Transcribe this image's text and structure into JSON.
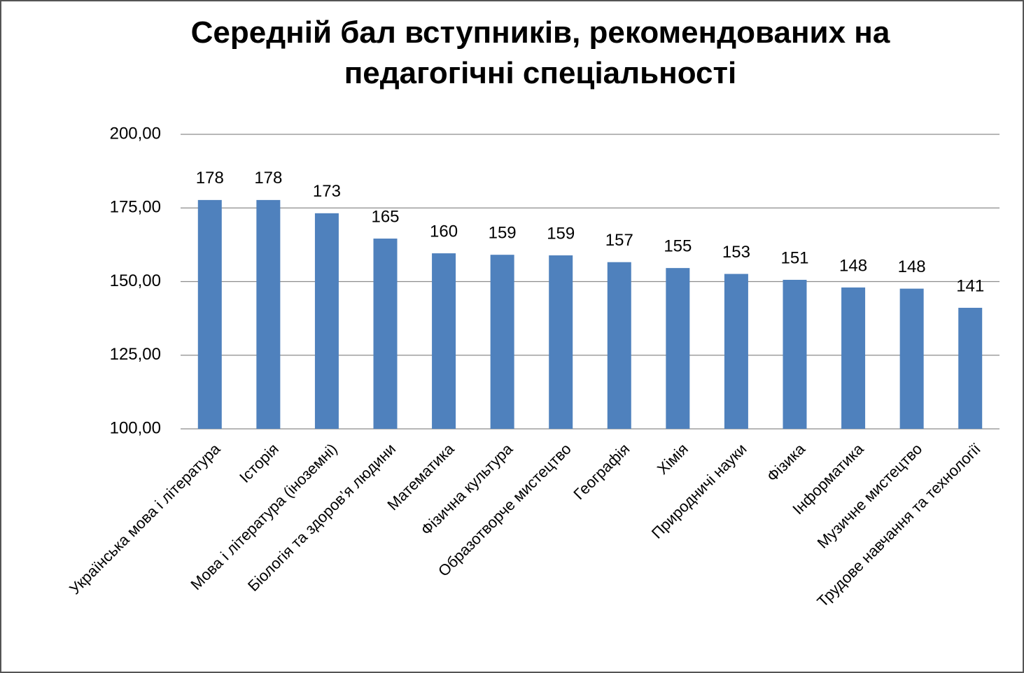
{
  "chart_data": {
    "type": "bar",
    "title": "Середній бал вступників, рекомендованих на педагогічні спеціальності",
    "categories": [
      "Українська мова і література",
      "Історія",
      "Мова і література (іноземні)",
      "Біологія та здоров’я людини",
      "Математика",
      "Фізична культура",
      "Образотворче мистецтво",
      "Географія",
      "Хімія",
      "Природничі науки",
      "Фізика",
      "Інформатика",
      "Музичне мистецтво",
      "Трудове навчання та технології"
    ],
    "values": [
      177.7,
      177.7,
      173.2,
      164.6,
      159.6,
      159.1,
      158.9,
      156.6,
      154.6,
      152.6,
      150.6,
      148.0,
      147.6,
      141.1
    ],
    "value_labels": [
      "178",
      "178",
      "173",
      "165",
      "160",
      "159",
      "159",
      "157",
      "155",
      "153",
      "151",
      "148",
      "148",
      "141"
    ],
    "color": "#4f81bd",
    "ylim": [
      100,
      200
    ],
    "yticks": [
      {
        "value": 100,
        "label": "100,00"
      },
      {
        "value": 125,
        "label": "125,00"
      },
      {
        "value": 150,
        "label": "150,00"
      },
      {
        "value": 175,
        "label": "175,00"
      },
      {
        "value": 200,
        "label": "200,00"
      }
    ],
    "grid": true
  }
}
